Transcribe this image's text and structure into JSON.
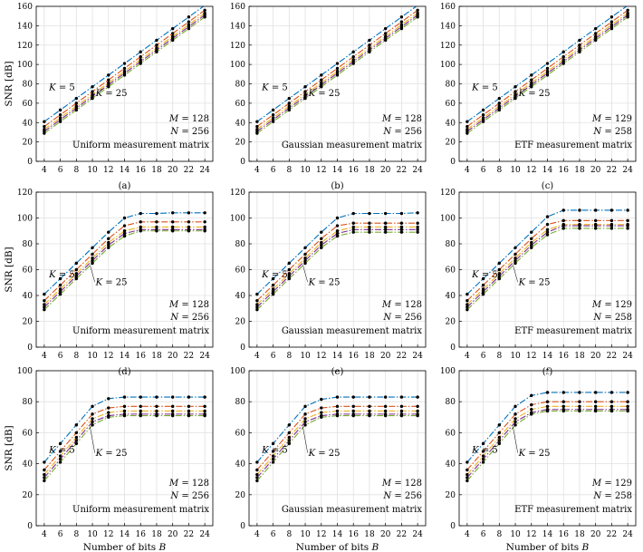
{
  "figure": {
    "y_axis_label": "SNR [dB]",
    "x_axis_label": "Number of bits B"
  },
  "colors": {
    "K5": "#0072BD",
    "K10": "#D95319",
    "K15": "#EDB120",
    "K20": "#7E2F8E",
    "K25": "#77AC30",
    "marker": "#000000",
    "grid": "#e0e0e0"
  },
  "chart_data": [
    {
      "type": "line",
      "panel": "(a)",
      "x": [
        4,
        6,
        8,
        10,
        12,
        14,
        16,
        18,
        20,
        22,
        24
      ],
      "xticks": [
        4,
        6,
        8,
        10,
        12,
        14,
        16,
        18,
        20,
        22,
        24
      ],
      "ylim": [
        0,
        160
      ],
      "yticks": [
        0,
        20,
        40,
        60,
        80,
        100,
        120,
        140,
        160
      ],
      "xlabel": "",
      "ylabel": "SNR [dB]",
      "grid": true,
      "annotations": [
        "K = 5",
        "K = 25",
        "M = 128",
        "N = 256",
        "Uniform measurement matrix"
      ],
      "series": [
        {
          "values": [
            41,
            53,
            65,
            77,
            89,
            101,
            113,
            125,
            137,
            149,
            161
          ]
        },
        {
          "values": [
            36,
            48,
            60,
            72,
            84,
            96,
            108,
            120,
            132,
            144,
            156
          ]
        },
        {
          "values": [
            33,
            45,
            57,
            69,
            81,
            93,
            105,
            117,
            129,
            141,
            153
          ]
        },
        {
          "values": [
            31,
            43,
            55,
            67,
            79,
            91,
            103,
            115,
            127,
            139,
            151
          ]
        },
        {
          "values": [
            29,
            41,
            53,
            65,
            77,
            89,
            101,
            113,
            125,
            137,
            149
          ]
        }
      ]
    },
    {
      "type": "line",
      "panel": "(b)",
      "x": [
        4,
        6,
        8,
        10,
        12,
        14,
        16,
        18,
        20,
        22,
        24
      ],
      "xticks": [
        4,
        6,
        8,
        10,
        12,
        14,
        16,
        18,
        20,
        22,
        24
      ],
      "ylim": [
        0,
        160
      ],
      "yticks": [
        0,
        20,
        40,
        60,
        80,
        100,
        120,
        140,
        160
      ],
      "xlabel": "",
      "ylabel": "",
      "grid": true,
      "annotations": [
        "K = 5",
        "K = 25",
        "M = 128",
        "N = 256",
        "Gaussian measurement matrix"
      ],
      "series": [
        {
          "values": [
            41,
            53,
            65,
            77,
            89,
            101,
            113,
            125,
            137,
            149,
            161
          ]
        },
        {
          "values": [
            36,
            48,
            60,
            72,
            84,
            96,
            108,
            120,
            132,
            144,
            156
          ]
        },
        {
          "values": [
            33,
            45,
            57,
            69,
            81,
            93,
            105,
            117,
            129,
            141,
            153
          ]
        },
        {
          "values": [
            31,
            43,
            55,
            67,
            79,
            91,
            103,
            115,
            127,
            139,
            151
          ]
        },
        {
          "values": [
            29,
            41,
            53,
            65,
            77,
            89,
            101,
            113,
            125,
            137,
            149
          ]
        }
      ]
    },
    {
      "type": "line",
      "panel": "(c)",
      "x": [
        4,
        6,
        8,
        10,
        12,
        14,
        16,
        18,
        20,
        22,
        24
      ],
      "xticks": [
        4,
        6,
        8,
        10,
        12,
        14,
        16,
        18,
        20,
        22,
        24
      ],
      "ylim": [
        0,
        160
      ],
      "yticks": [
        0,
        20,
        40,
        60,
        80,
        100,
        120,
        140,
        160
      ],
      "xlabel": "",
      "ylabel": "",
      "grid": true,
      "annotations": [
        "K = 5",
        "K = 25",
        "M = 129",
        "N = 258",
        "ETF measurement matrix"
      ],
      "series": [
        {
          "values": [
            41,
            53,
            65,
            77,
            89,
            101,
            113,
            125,
            137,
            149,
            161
          ]
        },
        {
          "values": [
            36,
            48,
            60,
            72,
            84,
            96,
            108,
            120,
            132,
            144,
            156
          ]
        },
        {
          "values": [
            33,
            45,
            57,
            69,
            81,
            93,
            105,
            117,
            129,
            141,
            153
          ]
        },
        {
          "values": [
            31,
            43,
            55,
            67,
            79,
            91,
            103,
            115,
            127,
            139,
            151
          ]
        },
        {
          "values": [
            29,
            41,
            53,
            65,
            77,
            89,
            101,
            113,
            125,
            137,
            149
          ]
        }
      ]
    },
    {
      "type": "line",
      "panel": "(d)",
      "x": [
        4,
        6,
        8,
        10,
        12,
        14,
        16,
        18,
        20,
        22,
        24
      ],
      "xticks": [
        4,
        6,
        8,
        10,
        12,
        14,
        16,
        18,
        20,
        22,
        24
      ],
      "ylim": [
        0,
        120
      ],
      "yticks": [
        0,
        20,
        40,
        60,
        80,
        100,
        120
      ],
      "xlabel": "",
      "ylabel": "SNR [dB]",
      "grid": true,
      "annotations": [
        "K = 5",
        "K = 25",
        "M = 128",
        "N = 256",
        "Uniform measurement matrix"
      ],
      "series": [
        {
          "values": [
            41,
            53,
            65,
            77,
            89,
            100,
            103.5,
            103.5,
            104,
            104,
            104
          ]
        },
        {
          "values": [
            36,
            48,
            60,
            72,
            84,
            94,
            97,
            97,
            97,
            97,
            97
          ]
        },
        {
          "values": [
            33,
            45,
            57,
            69,
            81,
            90,
            93,
            93,
            93,
            93,
            93
          ]
        },
        {
          "values": [
            31,
            43,
            55,
            67,
            79,
            88,
            91,
            91,
            91,
            91,
            91
          ]
        },
        {
          "values": [
            29,
            41,
            53,
            65,
            77,
            86,
            90,
            90,
            90,
            90,
            90
          ]
        }
      ]
    },
    {
      "type": "line",
      "panel": "(e)",
      "x": [
        4,
        6,
        8,
        10,
        12,
        14,
        16,
        18,
        20,
        22,
        24
      ],
      "xticks": [
        4,
        6,
        8,
        10,
        12,
        14,
        16,
        18,
        20,
        22,
        24
      ],
      "ylim": [
        0,
        120
      ],
      "yticks": [
        0,
        20,
        40,
        60,
        80,
        100,
        120
      ],
      "xlabel": "",
      "ylabel": "",
      "grid": true,
      "annotations": [
        "K = 5",
        "K = 25",
        "M = 128",
        "N = 256",
        "Gaussian measurement matrix"
      ],
      "series": [
        {
          "values": [
            41,
            53,
            65,
            77,
            89,
            100,
            103.5,
            103.5,
            103.5,
            103.5,
            104
          ]
        },
        {
          "values": [
            36,
            48,
            60,
            72,
            84,
            94,
            96,
            96,
            96,
            96,
            96
          ]
        },
        {
          "values": [
            33,
            45,
            57,
            69,
            81,
            90,
            93,
            93,
            93,
            93,
            93
          ]
        },
        {
          "values": [
            31,
            43,
            55,
            67,
            79,
            88,
            91,
            91,
            91,
            91,
            91
          ]
        },
        {
          "values": [
            29,
            41,
            53,
            65,
            77,
            86,
            89,
            89,
            89,
            89,
            89
          ]
        }
      ]
    },
    {
      "type": "line",
      "panel": "(f)",
      "x": [
        4,
        6,
        8,
        10,
        12,
        14,
        16,
        18,
        20,
        22,
        24
      ],
      "xticks": [
        4,
        6,
        8,
        10,
        12,
        14,
        16,
        18,
        20,
        22,
        24
      ],
      "ylim": [
        0,
        120
      ],
      "yticks": [
        0,
        20,
        40,
        60,
        80,
        100,
        120
      ],
      "xlabel": "",
      "ylabel": "",
      "grid": true,
      "annotations": [
        "K = 5",
        "K = 25",
        "M = 129",
        "N = 258",
        "ETF measurement matrix"
      ],
      "series": [
        {
          "values": [
            41,
            53,
            65,
            77,
            89,
            101,
            106,
            106,
            106,
            106,
            106
          ]
        },
        {
          "values": [
            36,
            48,
            60,
            72,
            84,
            95,
            98,
            98,
            98,
            98,
            98
          ]
        },
        {
          "values": [
            33,
            45,
            57,
            69,
            81,
            91,
            95,
            95,
            95,
            95,
            95
          ]
        },
        {
          "values": [
            31,
            43,
            55,
            67,
            79,
            89,
            94,
            94,
            94,
            94,
            94
          ]
        },
        {
          "values": [
            29,
            41,
            53,
            65,
            77,
            87,
            92,
            92,
            92,
            92,
            92
          ]
        }
      ]
    },
    {
      "type": "line",
      "panel": "(g)",
      "x": [
        4,
        6,
        8,
        10,
        12,
        14,
        16,
        18,
        20,
        22,
        24
      ],
      "xticks": [
        4,
        6,
        8,
        10,
        12,
        14,
        16,
        18,
        20,
        22,
        24
      ],
      "ylim": [
        0,
        100
      ],
      "yticks": [
        0,
        20,
        40,
        60,
        80,
        100
      ],
      "xlabel": "Number of bits B",
      "ylabel": "SNR [dB]",
      "grid": true,
      "annotations": [
        "K = 5",
        "K = 25",
        "M = 128",
        "N = 256",
        "Uniform measurement matrix"
      ],
      "series": [
        {
          "values": [
            41,
            53,
            65,
            77,
            82,
            83,
            83,
            83,
            83,
            83,
            83
          ]
        },
        {
          "values": [
            36,
            48,
            60,
            72,
            76,
            77,
            77,
            77,
            77,
            77,
            77
          ]
        },
        {
          "values": [
            33,
            45,
            57,
            69,
            73,
            74,
            74,
            74,
            74,
            74,
            74
          ]
        },
        {
          "values": [
            31,
            43,
            55,
            67,
            71,
            72,
            72,
            72,
            72,
            72,
            72
          ]
        },
        {
          "values": [
            29,
            41,
            53,
            65,
            70,
            71,
            71,
            71,
            71,
            71,
            71
          ]
        }
      ]
    },
    {
      "type": "line",
      "panel": "(h)",
      "x": [
        4,
        6,
        8,
        10,
        12,
        14,
        16,
        18,
        20,
        22,
        24
      ],
      "xticks": [
        4,
        6,
        8,
        10,
        12,
        14,
        16,
        18,
        20,
        22,
        24
      ],
      "ylim": [
        0,
        100
      ],
      "yticks": [
        0,
        20,
        40,
        60,
        80,
        100
      ],
      "xlabel": "Number of bits B",
      "ylabel": "",
      "grid": true,
      "annotations": [
        "K = 5",
        "K = 25",
        "M = 128",
        "N = 256",
        "Gaussian measurement matrix"
      ],
      "series": [
        {
          "values": [
            41,
            53,
            65,
            77,
            81.5,
            83,
            83,
            83,
            83,
            83,
            83
          ]
        },
        {
          "values": [
            36,
            48,
            60,
            72,
            76,
            77,
            77,
            77,
            77,
            77,
            77
          ]
        },
        {
          "values": [
            33,
            45,
            57,
            69,
            73,
            74,
            74,
            74,
            74,
            74,
            74
          ]
        },
        {
          "values": [
            31,
            43,
            55,
            67,
            71,
            72,
            72,
            72,
            72,
            72,
            72
          ]
        },
        {
          "values": [
            29,
            41,
            53,
            65,
            70,
            71,
            71,
            71,
            71,
            71,
            71
          ]
        }
      ]
    },
    {
      "type": "line",
      "panel": "(i)",
      "x": [
        4,
        6,
        8,
        10,
        12,
        14,
        16,
        18,
        20,
        22,
        24
      ],
      "xticks": [
        4,
        6,
        8,
        10,
        12,
        14,
        16,
        18,
        20,
        22,
        24
      ],
      "ylim": [
        0,
        100
      ],
      "yticks": [
        0,
        20,
        40,
        60,
        80,
        100
      ],
      "xlabel": "Number of bits B",
      "ylabel": "",
      "grid": true,
      "annotations": [
        "K = 5",
        "K = 25",
        "M = 129",
        "N = 258",
        "ETF measurement matrix"
      ],
      "series": [
        {
          "values": [
            41,
            53,
            65,
            77,
            84,
            86,
            86,
            86,
            86,
            86,
            86
          ]
        },
        {
          "values": [
            36,
            48,
            60,
            72,
            78,
            80,
            80,
            80,
            80,
            80,
            80
          ]
        },
        {
          "values": [
            33,
            45,
            57,
            69,
            75,
            77,
            77,
            77,
            77,
            77,
            77
          ]
        },
        {
          "values": [
            31,
            43,
            55,
            67,
            73,
            75,
            75,
            75,
            75,
            75,
            75
          ]
        },
        {
          "values": [
            29,
            41,
            53,
            65,
            72,
            74,
            74,
            74,
            74,
            74,
            74
          ]
        }
      ]
    }
  ]
}
